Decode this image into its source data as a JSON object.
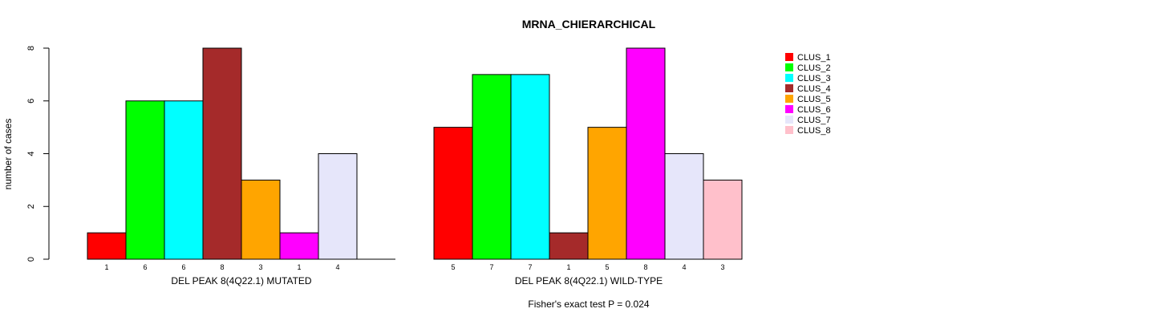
{
  "chart_data": {
    "type": "bar",
    "title": "MRNA_CHIERARCHICAL",
    "ylabel": "number of cases",
    "ylim": [
      0,
      8
    ],
    "yticks": [
      0,
      2,
      4,
      6,
      8
    ],
    "legend_position": "top-right",
    "series": [
      {
        "name": "CLUS_1",
        "color": "#ff0000"
      },
      {
        "name": "CLUS_2",
        "color": "#00ff00"
      },
      {
        "name": "CLUS_3",
        "color": "#00ffff"
      },
      {
        "name": "CLUS_4",
        "color": "#a52a2a"
      },
      {
        "name": "CLUS_5",
        "color": "#ffa500"
      },
      {
        "name": "CLUS_6",
        "color": "#ff00ff"
      },
      {
        "name": "CLUS_7",
        "color": "#e6e6fa"
      },
      {
        "name": "CLUS_8",
        "color": "#ffc0cb"
      }
    ],
    "panels": [
      {
        "xlabel": "DEL PEAK  8(4Q22.1) MUTATED",
        "values": [
          1,
          6,
          6,
          8,
          3,
          1,
          4,
          0
        ],
        "count_labels": [
          "1",
          "6",
          "6",
          "8",
          "3",
          "1",
          "4",
          ""
        ]
      },
      {
        "xlabel": "DEL PEAK  8(4Q22.1) WILD-TYPE",
        "values": [
          5,
          7,
          7,
          1,
          5,
          8,
          4,
          3
        ],
        "count_labels": [
          "5",
          "7",
          "7",
          "1",
          "5",
          "8",
          "4",
          "3"
        ]
      }
    ],
    "footnote": "Fisher's exact test P = 0.024"
  }
}
